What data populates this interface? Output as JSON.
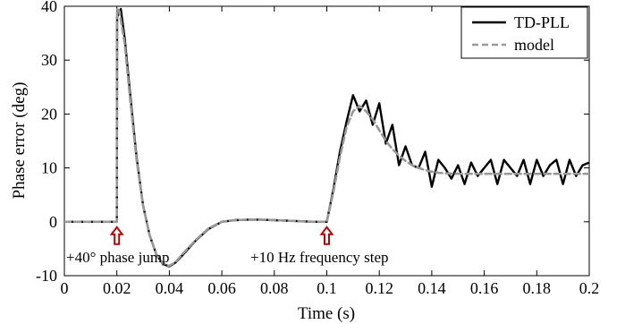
{
  "chart_data": {
    "type": "line",
    "xlabel": "Time (s)",
    "ylabel": "Phase error (deg)",
    "xlim": [
      0,
      0.2
    ],
    "ylim": [
      -10,
      40
    ],
    "x_ticks": [
      "0",
      "0.02",
      "0.04",
      "0.06",
      "0.08",
      "0.1",
      "0.12",
      "0.14",
      "0.16",
      "0.18",
      "0.2"
    ],
    "y_ticks": [
      "-10",
      "0",
      "10",
      "20",
      "30",
      "40"
    ],
    "grid": false,
    "legend_position": "top-right",
    "series": [
      {
        "name": "TD-PLL",
        "style": "solid",
        "color": "#000000",
        "x": [
          0,
          0.02,
          0.0201,
          0.0215,
          0.023,
          0.025,
          0.0275,
          0.03,
          0.0325,
          0.035,
          0.0375,
          0.04,
          0.0425,
          0.045,
          0.05,
          0.055,
          0.06,
          0.065,
          0.07,
          0.075,
          0.08,
          0.085,
          0.09,
          0.095,
          0.1,
          0.1025,
          0.105,
          0.1075,
          0.11,
          0.1125,
          0.115,
          0.1175,
          0.12,
          0.1225,
          0.125,
          0.1275,
          0.13,
          0.1325,
          0.135,
          0.1375,
          0.14,
          0.1425,
          0.145,
          0.1475,
          0.15,
          0.1525,
          0.155,
          0.1575,
          0.16,
          0.1625,
          0.165,
          0.1675,
          0.17,
          0.1725,
          0.175,
          0.1775,
          0.18,
          0.1825,
          0.185,
          0.1875,
          0.19,
          0.1925,
          0.195,
          0.1975,
          0.2
        ],
        "y": [
          0,
          0,
          38,
          39.5,
          34,
          24,
          12,
          3,
          -2.5,
          -6,
          -7.8,
          -8.3,
          -7.5,
          -6.2,
          -3.5,
          -1.3,
          0,
          0.3,
          0.4,
          0.4,
          0.3,
          0.2,
          0.1,
          0,
          0,
          6,
          13,
          18.5,
          23.5,
          20.5,
          22.5,
          18,
          22,
          14.5,
          18,
          10.5,
          14,
          10.5,
          10,
          13,
          6.5,
          11.5,
          10,
          8,
          10.5,
          7,
          11,
          8.5,
          10,
          11.5,
          7,
          11.5,
          10,
          8.5,
          11.5,
          7,
          11.5,
          8.5,
          10.5,
          11.5,
          7,
          11.5,
          8.5,
          10.5,
          11
        ]
      },
      {
        "name": "model",
        "style": "dashed",
        "color": "#999999",
        "x": [
          0,
          0.02,
          0.0201,
          0.021,
          0.023,
          0.025,
          0.0275,
          0.03,
          0.0325,
          0.035,
          0.0375,
          0.04,
          0.0425,
          0.045,
          0.05,
          0.055,
          0.06,
          0.065,
          0.07,
          0.075,
          0.08,
          0.085,
          0.09,
          0.095,
          0.1,
          0.1025,
          0.105,
          0.1075,
          0.11,
          0.1125,
          0.115,
          0.1175,
          0.12,
          0.1225,
          0.125,
          0.1275,
          0.13,
          0.1325,
          0.135,
          0.1375,
          0.14,
          0.1425,
          0.145,
          0.15,
          0.155,
          0.16,
          0.17,
          0.18,
          0.19,
          0.2
        ],
        "y": [
          0,
          0,
          39.5,
          39,
          33,
          23,
          11.5,
          3,
          -2.5,
          -6,
          -7.7,
          -8.2,
          -7.4,
          -6,
          -3.4,
          -1.2,
          0,
          0.3,
          0.4,
          0.4,
          0.3,
          0.2,
          0.1,
          0,
          0,
          5.5,
          12,
          17.5,
          20.5,
          21.5,
          20.5,
          19,
          17,
          15,
          13.5,
          12.3,
          11.3,
          10.5,
          10,
          9.6,
          9.3,
          9.1,
          9,
          8.9,
          8.9,
          8.9,
          8.9,
          8.9,
          8.9,
          8.9
        ]
      }
    ],
    "annotations": [
      {
        "text": "+40° phase jump",
        "x": 0.02
      },
      {
        "text": "+10 Hz frequency step",
        "x": 0.1
      }
    ],
    "annotation_marker_color": "#c00000"
  }
}
